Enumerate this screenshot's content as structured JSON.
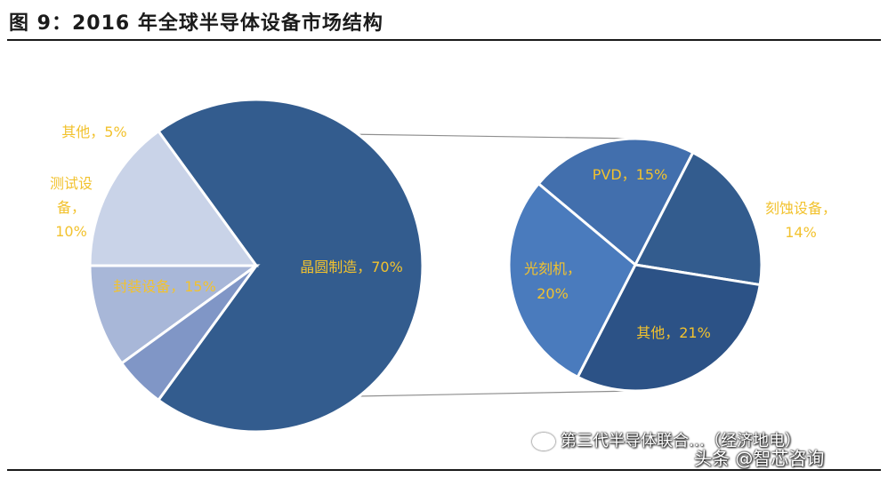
{
  "title": "图 9：2016 年全球半导体设备市场结构",
  "watermark": {
    "line1": "第三代半导体联合…（经济地电）",
    "line2": "头条 @智芯咨询",
    "icon": "wechat-icon"
  },
  "chart_data": [
    {
      "type": "pie",
      "title": "",
      "slices": [
        {
          "label": "晶圆制造，70%",
          "value": 70,
          "color": "#335c8e",
          "label_color": "#f2c22e"
        },
        {
          "label": "封装设备，15%",
          "value": 15,
          "color": "#c9d3e8",
          "label_color": "#f2c22e"
        },
        {
          "label": "测试设备，10%",
          "value": 10,
          "color": "#a8b7d8",
          "label_color": "#f2c22e"
        },
        {
          "label": "其他，5%",
          "value": 5,
          "color": "#8096c6",
          "label_color": "#f2c22e"
        }
      ]
    },
    {
      "type": "pie",
      "title": "",
      "slices": [
        {
          "label": "PVD，15%",
          "value": 15,
          "color": "#426fad",
          "label_color": "#f2c22e"
        },
        {
          "label": "刻蚀设备，14%",
          "value": 14,
          "color": "#335c8e",
          "label_color": "#f2c22e"
        },
        {
          "label": "其他，21%",
          "value": 21,
          "color": "#2c5286",
          "label_color": "#f2c22e"
        },
        {
          "label": "光刻机，20%",
          "value": 20,
          "color": "#4a7bbd",
          "label_color": "#f2c22e"
        }
      ]
    }
  ]
}
